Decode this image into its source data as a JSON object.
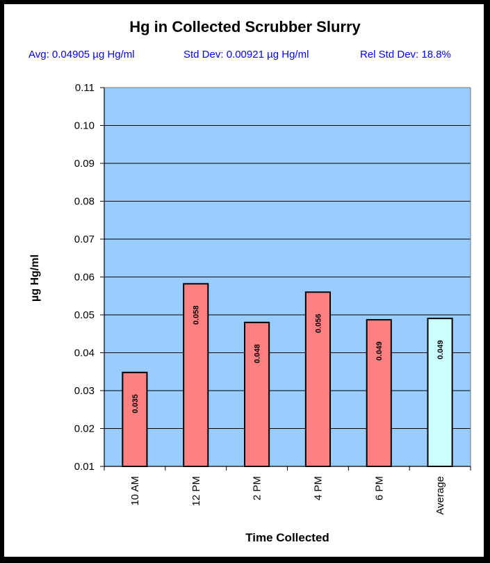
{
  "chart_data": {
    "type": "bar",
    "title": "Hg in Collected Scrubber Slurry",
    "stats": {
      "avg": "Avg:  0.04905 µg Hg/ml",
      "std_dev": "Std Dev:  0.00921 µg Hg/ml",
      "rel_std_dev": "Rel Std Dev: 18.8%"
    },
    "xlabel": "Time Collected",
    "ylabel": "µg Hg/ml",
    "ylim": [
      0.01,
      0.11
    ],
    "yticks": [
      "0.01",
      "0.02",
      "0.03",
      "0.04",
      "0.05",
      "0.06",
      "0.07",
      "0.08",
      "0.09",
      "0.10",
      "0.11"
    ],
    "categories": [
      "10 AM",
      "12 PM",
      "2 PM",
      "4 PM",
      "6 PM",
      "Average"
    ],
    "values": [
      0.0348,
      0.0582,
      0.048,
      0.056,
      0.0487,
      0.04905
    ],
    "data_labels": [
      "0.035",
      "0.058",
      "0.048",
      "0.056",
      "0.049",
      "0.049"
    ],
    "grid": true,
    "legend": "none",
    "colors": {
      "plot_background": "#99ccff",
      "bar": "#ff8080",
      "average_bar": "#ccffff",
      "stats_text": "#0000ff"
    }
  }
}
